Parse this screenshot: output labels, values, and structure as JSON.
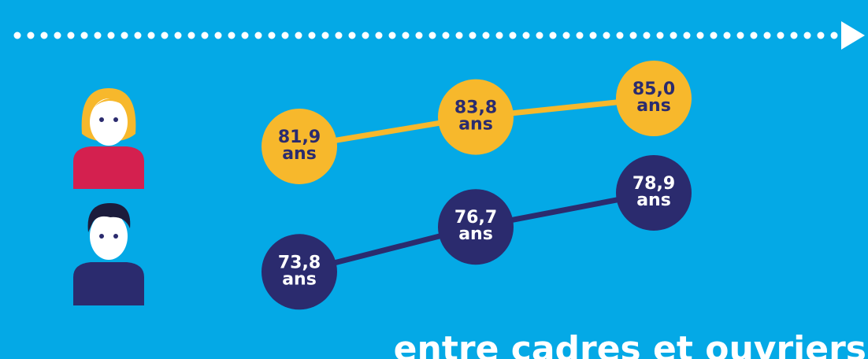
{
  "chart_data": {
    "type": "line",
    "categories": [
      null,
      null,
      null
    ],
    "series": [
      {
        "color": "#f7b82c",
        "text_color": "#2b2b6e",
        "values": [
          81.9,
          83.8,
          85.0
        ],
        "value_labels": [
          "81,9",
          "83,8",
          "85,0"
        ]
      },
      {
        "color": "#2b2b6e",
        "text_color": "#ffffff",
        "values": [
          73.8,
          76.7,
          78.9
        ],
        "value_labels": [
          "73,8",
          "76,7",
          "78,9"
        ]
      }
    ],
    "unit": "ans",
    "ylim": [
      70,
      88
    ],
    "annotation": "entre cadres et ouvriers"
  }
}
